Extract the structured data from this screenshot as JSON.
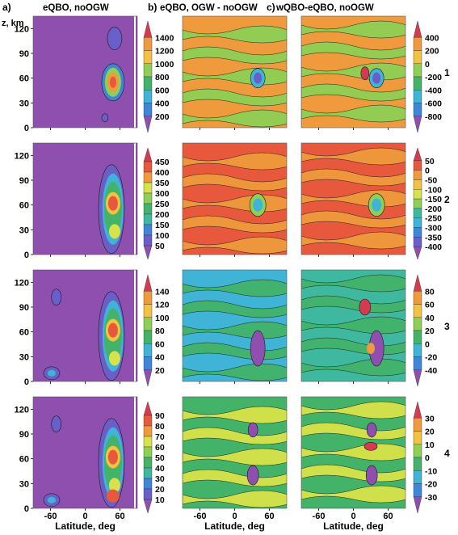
{
  "chart_data": {
    "type": "heatmap",
    "column_titles": [
      {
        "letter": "a)",
        "title": "eQBO, noOGW"
      },
      {
        "letter": "b)",
        "title": "eQBO, OGW - noOGW"
      },
      {
        "letter": "c)",
        "title": "wQBO-eQBO, noOGW"
      }
    ],
    "ylabel": "z, km",
    "xlabel": "Latitude, deg",
    "x_ticks": [
      "-60",
      "0",
      "60"
    ],
    "y_ticks": [
      "0",
      "30",
      "60",
      "90",
      "120"
    ],
    "xlim": [
      -90,
      90
    ],
    "ylim": [
      0,
      135
    ],
    "rows": [
      {
        "row_label": "1",
        "colorbar_a": [
          "1400",
          "1200",
          "1000",
          "800",
          "600",
          "400",
          "200"
        ],
        "colorbar_bc": [
          "400",
          "200",
          "0",
          "-200",
          "-400",
          "-600",
          "-800"
        ]
      },
      {
        "row_label": "2",
        "colorbar_a": [
          "450",
          "400",
          "350",
          "300",
          "250",
          "200",
          "150",
          "100",
          "50"
        ],
        "colorbar_bc": [
          "50",
          "0",
          "-50",
          "-100",
          "-150",
          "-200",
          "-250",
          "-300",
          "-350",
          "-400"
        ]
      },
      {
        "row_label": "3",
        "colorbar_a": [
          "140",
          "120",
          "100",
          "80",
          "60",
          "40",
          "20"
        ],
        "colorbar_bc": [
          "80",
          "60",
          "40",
          "20",
          "0",
          "-20",
          "-40"
        ]
      },
      {
        "row_label": "4",
        "colorbar_a": [
          "90",
          "80",
          "70",
          "60",
          "50",
          "40",
          "30",
          "20",
          "10"
        ],
        "colorbar_bc": [
          "30",
          "20",
          "10",
          "0",
          "-10",
          "-20",
          "-30"
        ]
      }
    ],
    "palette": [
      "#8e4fae",
      "#6a5fc8",
      "#3f86d8",
      "#3fb4d6",
      "#3fb8a0",
      "#43b36a",
      "#8fcf55",
      "#d8e34a",
      "#f2c240",
      "#ef9a3c",
      "#e8583c",
      "#d63a50"
    ]
  }
}
